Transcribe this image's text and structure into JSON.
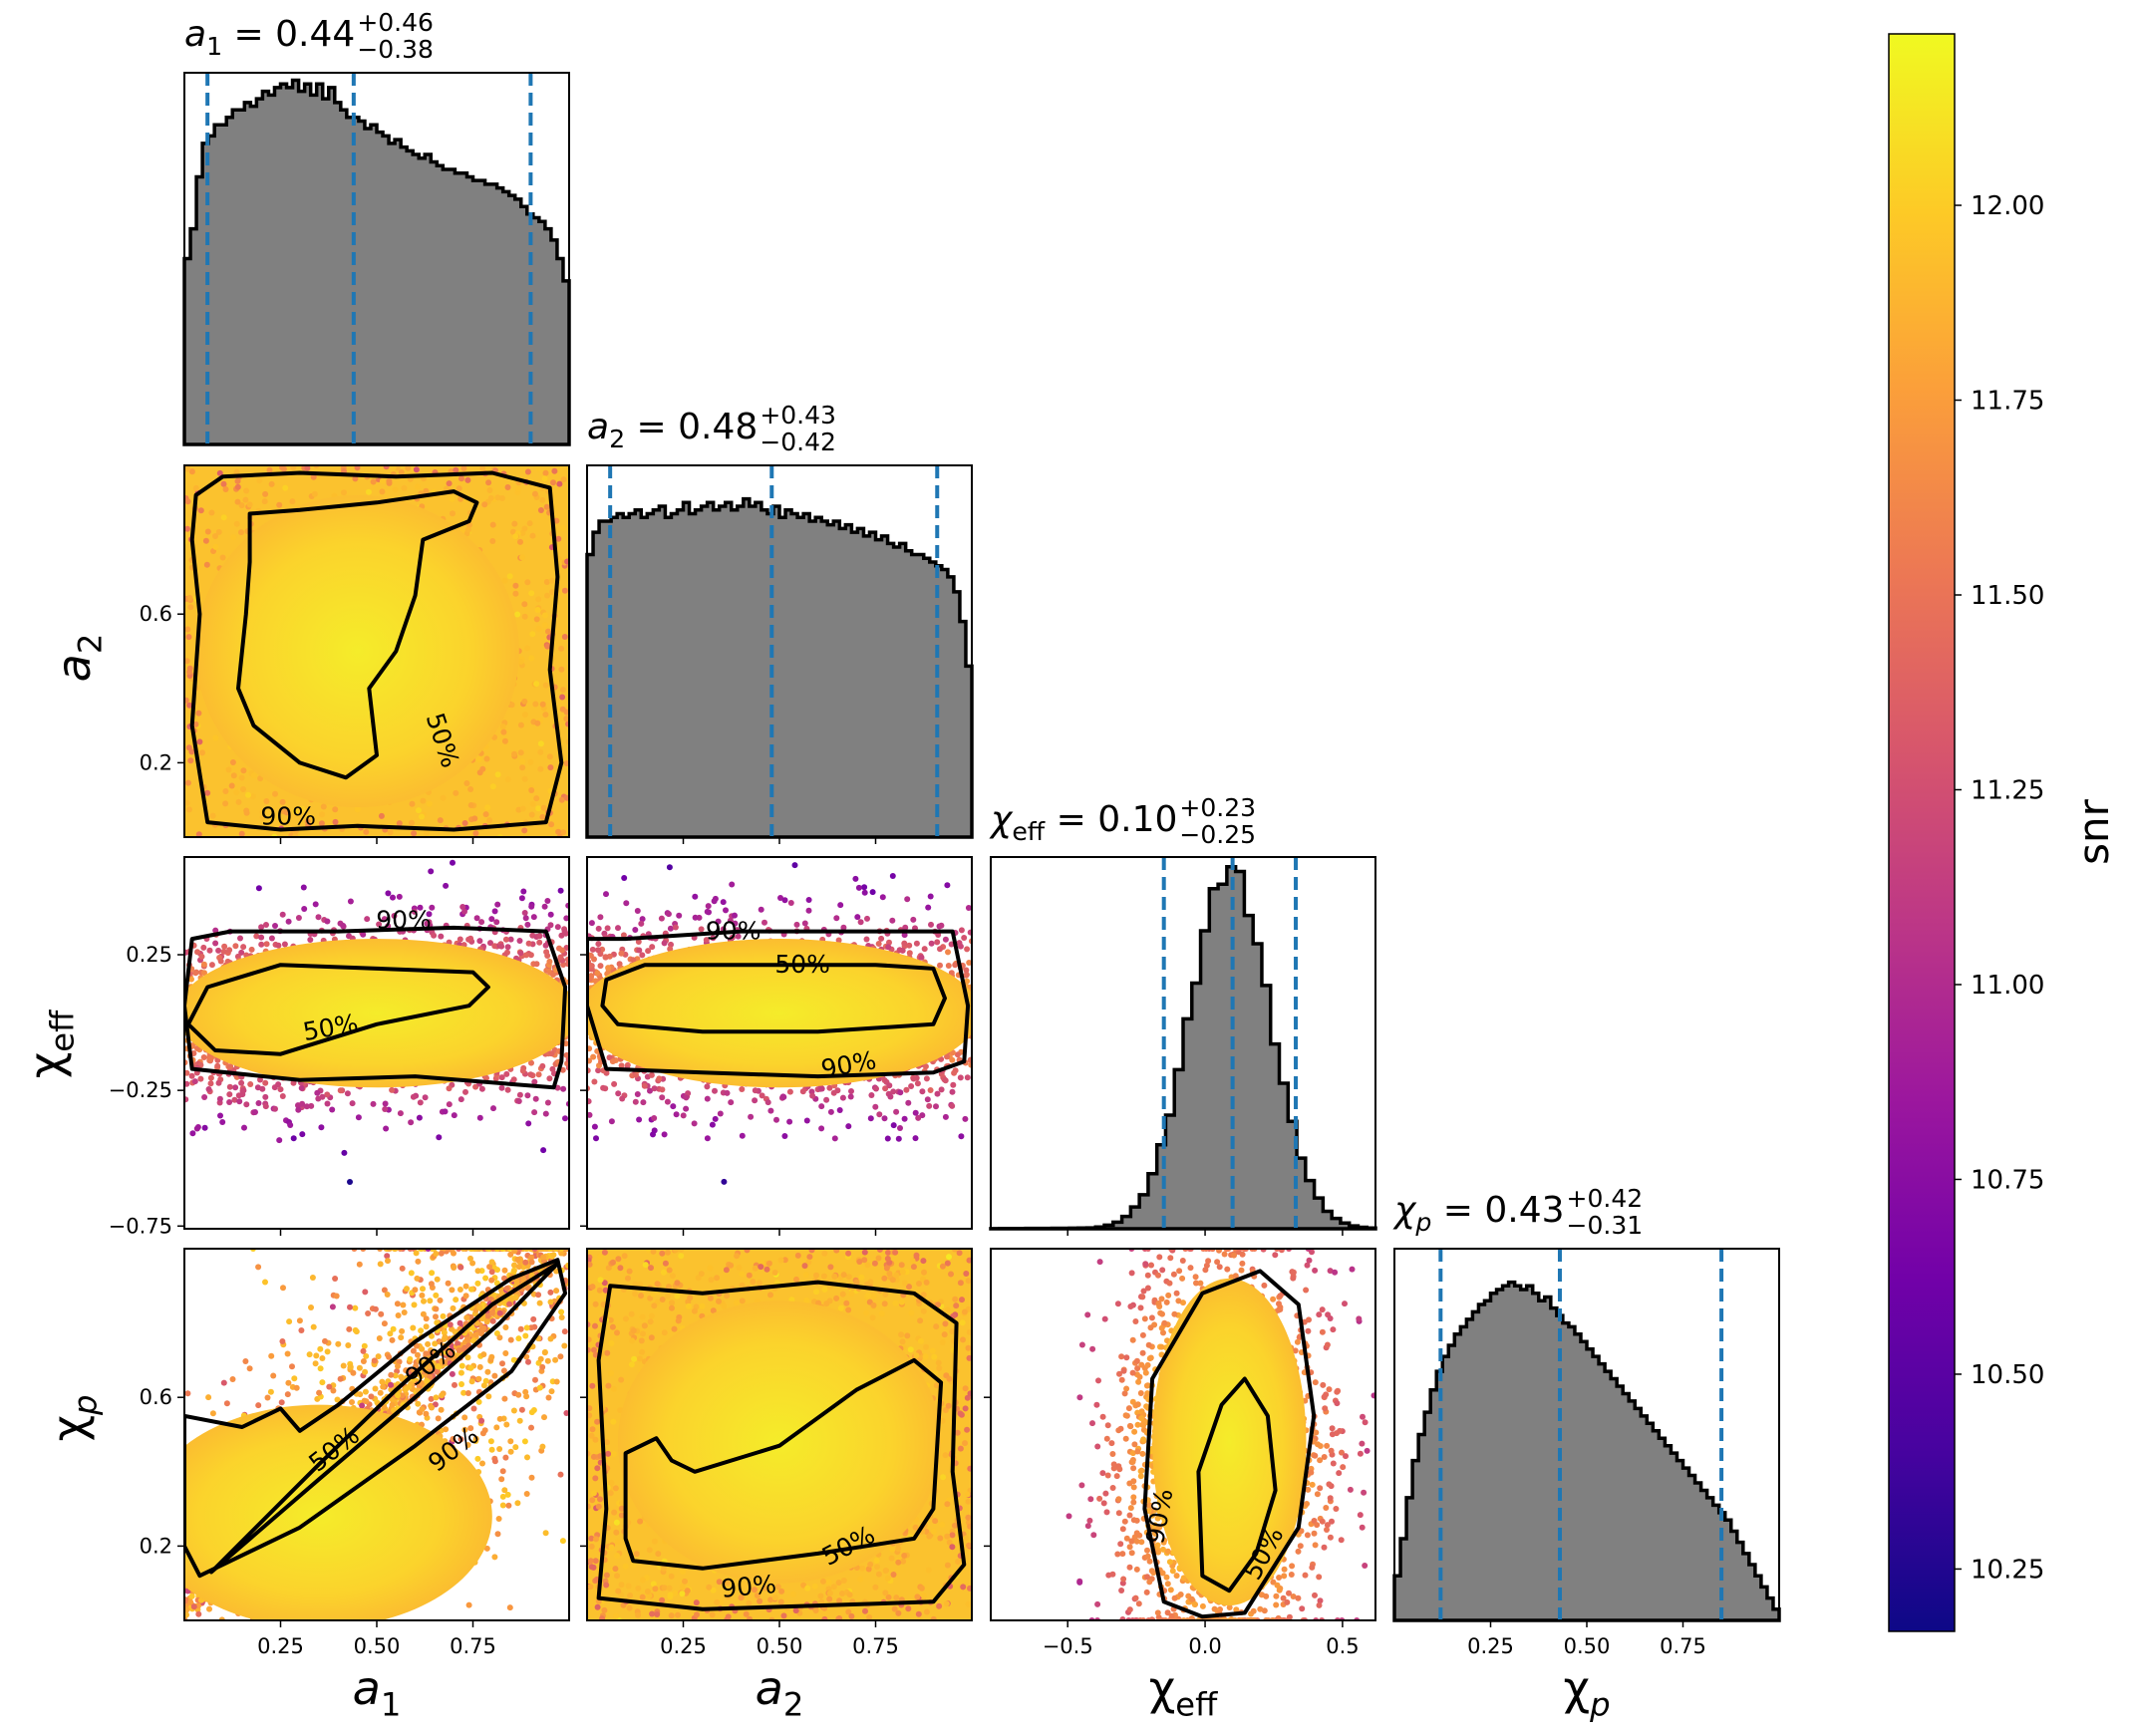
{
  "figure": {
    "type": "corner_plot",
    "colormap": "plasma"
  },
  "chart_data": [
    {
      "type": "histogram",
      "variable": "a1",
      "title": {
        "base": "a",
        "sub": "1",
        "eq": " = 0.44",
        "sup": "+0.46",
        "inf": "−0.38"
      },
      "xlim": [
        0.0,
        1.0
      ],
      "bins_x": [
        0.0,
        1.0
      ],
      "counts": [
        0.5,
        0.58,
        0.72,
        0.81,
        0.83,
        0.86,
        0.86,
        0.88,
        0.9,
        0.9,
        0.92,
        0.91,
        0.93,
        0.95,
        0.94,
        0.96,
        0.97,
        0.96,
        0.98,
        0.95,
        0.97,
        0.94,
        0.97,
        0.93,
        0.96,
        0.92,
        0.9,
        0.88,
        0.88,
        0.87,
        0.85,
        0.86,
        0.84,
        0.83,
        0.81,
        0.82,
        0.8,
        0.79,
        0.78,
        0.77,
        0.78,
        0.76,
        0.75,
        0.74,
        0.74,
        0.73,
        0.73,
        0.72,
        0.71,
        0.71,
        0.7,
        0.7,
        0.69,
        0.68,
        0.67,
        0.66,
        0.64,
        0.62,
        0.61,
        0.6,
        0.58,
        0.55,
        0.5,
        0.44
      ],
      "quantiles": [
        0.06,
        0.44,
        0.9
      ],
      "show_x_ticklabels": false
    },
    {
      "type": "histogram",
      "variable": "a2",
      "title": {
        "base": "a",
        "sub": "2",
        "eq": " = 0.48",
        "sup": "+0.43",
        "inf": "−0.42"
      },
      "xlim": [
        0.0,
        1.0
      ],
      "xticks": [
        "0.25",
        "0.50",
        "0.75"
      ],
      "counts": [
        0.76,
        0.82,
        0.85,
        0.85,
        0.86,
        0.87,
        0.86,
        0.87,
        0.88,
        0.86,
        0.87,
        0.88,
        0.89,
        0.86,
        0.87,
        0.88,
        0.9,
        0.87,
        0.88,
        0.89,
        0.9,
        0.88,
        0.89,
        0.9,
        0.88,
        0.89,
        0.91,
        0.89,
        0.9,
        0.88,
        0.87,
        0.89,
        0.86,
        0.88,
        0.87,
        0.86,
        0.87,
        0.85,
        0.86,
        0.85,
        0.84,
        0.85,
        0.83,
        0.84,
        0.82,
        0.83,
        0.81,
        0.82,
        0.8,
        0.81,
        0.79,
        0.78,
        0.79,
        0.77,
        0.76,
        0.76,
        0.75,
        0.74,
        0.73,
        0.72,
        0.7,
        0.66,
        0.58,
        0.46
      ],
      "quantiles": [
        0.06,
        0.48,
        0.91
      ],
      "show_x_ticklabels": false
    },
    {
      "type": "histogram",
      "variable": "chi_eff",
      "title": {
        "base": "χ",
        "sub": "eff",
        "eq": " = 0.10",
        "sup": "+0.23",
        "inf": "−0.25"
      },
      "xlim": [
        -0.78,
        0.62
      ],
      "xticks": [
        -0.5,
        0.0,
        0.5
      ],
      "tick_labels": [
        "−0.5",
        "0.0",
        "0.5"
      ],
      "quantiles": [
        -0.15,
        0.1,
        0.33
      ],
      "dist": {
        "mean": 0.09,
        "sigma": 0.145,
        "left_tail": 0.23
      }
    },
    {
      "type": "histogram",
      "variable": "chi_p",
      "title": {
        "base": "χ",
        "sub": "p",
        "eq": " = 0.43",
        "sup": "+0.42",
        "inf": "−0.31"
      },
      "xlim": [
        0.0,
        1.0
      ],
      "xticks": [
        0.25,
        0.5,
        0.75
      ],
      "tick_labels": [
        "0.25",
        "0.50",
        "0.75"
      ],
      "counts": [
        0.12,
        0.22,
        0.33,
        0.43,
        0.5,
        0.56,
        0.62,
        0.67,
        0.71,
        0.74,
        0.77,
        0.79,
        0.81,
        0.83,
        0.85,
        0.86,
        0.88,
        0.89,
        0.9,
        0.91,
        0.9,
        0.89,
        0.9,
        0.88,
        0.86,
        0.87,
        0.84,
        0.82,
        0.8,
        0.79,
        0.77,
        0.75,
        0.73,
        0.71,
        0.69,
        0.67,
        0.65,
        0.63,
        0.61,
        0.59,
        0.57,
        0.55,
        0.53,
        0.51,
        0.49,
        0.47,
        0.45,
        0.43,
        0.41,
        0.39,
        0.37,
        0.35,
        0.33,
        0.31,
        0.29,
        0.27,
        0.24,
        0.21,
        0.18,
        0.15,
        0.12,
        0.09,
        0.06,
        0.03
      ],
      "quantiles": [
        0.12,
        0.43,
        0.85
      ]
    },
    {
      "type": "scatter_contour",
      "x": "a1",
      "y": "a2",
      "xlim": [
        0.0,
        1.0
      ],
      "ylim": [
        0.0,
        1.0
      ],
      "yticks": [
        0.2,
        0.6
      ],
      "ytick_labels": [
        "0.2",
        "0.6"
      ],
      "contour_levels": [
        "50%",
        "90%"
      ]
    },
    {
      "type": "scatter_contour",
      "x": "a1",
      "y": "chi_eff",
      "xlim": [
        0.0,
        1.0
      ],
      "ylim": [
        -0.76,
        0.61
      ],
      "yticks": [
        -0.75,
        -0.25,
        0.25
      ],
      "ytick_labels": [
        "−0.75",
        "−0.25",
        "0.25"
      ],
      "contour_levels": [
        "50%",
        "90%"
      ]
    },
    {
      "type": "scatter_contour",
      "x": "a2",
      "y": "chi_eff",
      "xlim": [
        0.0,
        1.0
      ],
      "ylim": [
        -0.76,
        0.61
      ],
      "contour_levels": [
        "50%",
        "90%"
      ]
    },
    {
      "type": "scatter_contour",
      "x": "a1",
      "y": "chi_p",
      "xlim": [
        0.0,
        1.0
      ],
      "ylim": [
        0.0,
        1.0
      ],
      "yticks": [
        0.2,
        0.6
      ],
      "ytick_labels": [
        "0.2",
        "0.6"
      ],
      "contour_levels": [
        "50%",
        "90%"
      ]
    },
    {
      "type": "scatter_contour",
      "x": "a2",
      "y": "chi_p",
      "xlim": [
        0.0,
        1.0
      ],
      "ylim": [
        0.0,
        1.0
      ],
      "contour_levels": [
        "50%",
        "90%"
      ]
    },
    {
      "type": "scatter_contour",
      "x": "chi_eff",
      "y": "chi_p",
      "xlim": [
        -0.78,
        0.62
      ],
      "ylim": [
        0.0,
        1.0
      ],
      "contour_levels": [
        "90%",
        "50%"
      ]
    }
  ],
  "labels": {
    "a1": {
      "base": "a",
      "sub": "1"
    },
    "a2": {
      "base": "a",
      "sub": "2"
    },
    "chi_eff": {
      "base": "χ",
      "sub": "eff"
    },
    "chi_p": {
      "base": "χ",
      "sub": "p"
    }
  },
  "colorbar": {
    "label": "snr",
    "range": [
      10.17,
      12.22
    ],
    "ticks": [
      10.25,
      10.5,
      10.75,
      11.0,
      11.25,
      11.5,
      11.75,
      12.0
    ],
    "tick_labels": [
      "10.25",
      "10.50",
      "10.75",
      "11.00",
      "11.25",
      "11.50",
      "11.75",
      "12.00"
    ],
    "colors": [
      "#0d0887",
      "#46039f",
      "#7201a8",
      "#9c179e",
      "#bd3786",
      "#d8576b",
      "#ed7953",
      "#fb9f3a",
      "#fdca26",
      "#f0f921"
    ]
  }
}
